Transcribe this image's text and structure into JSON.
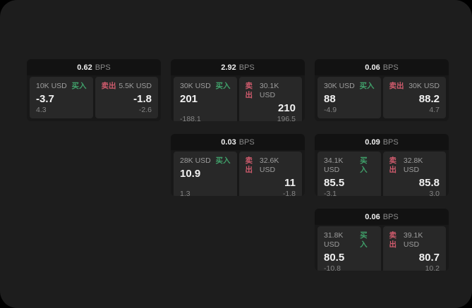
{
  "ui": {
    "unit_label": "BPS",
    "buy_label": "买入",
    "sell_label": "卖出"
  },
  "colors": {
    "background": "#000000",
    "surface": "#1d1d1d",
    "card_bg": "#181818",
    "header_bg": "#121212",
    "panel_bg": "#282828",
    "buy_green": "#40a06a",
    "sell_red": "#cf5b6d",
    "value_white": "#f2f2f2",
    "muted_gray": "#8a8a8a"
  },
  "cards": [
    {
      "row": 1,
      "col": 1,
      "bps": "0.62",
      "buy": {
        "size": "10K USD",
        "price": "-3.7",
        "sub": "4.3"
      },
      "sell": {
        "size": "5.5K USD",
        "price": "-1.8",
        "sub": "-2.6"
      }
    },
    {
      "row": 1,
      "col": 2,
      "bps": "2.92",
      "buy": {
        "size": "30K USD",
        "price": "201",
        "sub": "-188.1"
      },
      "sell": {
        "size": "30.1K USD",
        "price": "210",
        "sub": "196.5"
      }
    },
    {
      "row": 1,
      "col": 3,
      "bps": "0.06",
      "buy": {
        "size": "30K USD",
        "price": "88",
        "sub": "-4.9"
      },
      "sell": {
        "size": "30K USD",
        "price": "88.2",
        "sub": "4.7"
      }
    },
    {
      "row": 2,
      "col": 2,
      "bps": "0.03",
      "buy": {
        "size": "28K USD",
        "price": "10.9",
        "sub": "1.3"
      },
      "sell": {
        "size": "32.6K USD",
        "price": "11",
        "sub": "-1.8"
      }
    },
    {
      "row": 2,
      "col": 3,
      "bps": "0.09",
      "buy": {
        "size": "34.1K USD",
        "price": "85.5",
        "sub": "-3.1"
      },
      "sell": {
        "size": "32.8K USD",
        "price": "85.8",
        "sub": "3.0"
      }
    },
    {
      "row": 3,
      "col": 3,
      "bps": "0.06",
      "buy": {
        "size": "31.8K USD",
        "price": "80.5",
        "sub": "-10.8"
      },
      "sell": {
        "size": "39.1K USD",
        "price": "80.7",
        "sub": "10.2"
      }
    }
  ]
}
